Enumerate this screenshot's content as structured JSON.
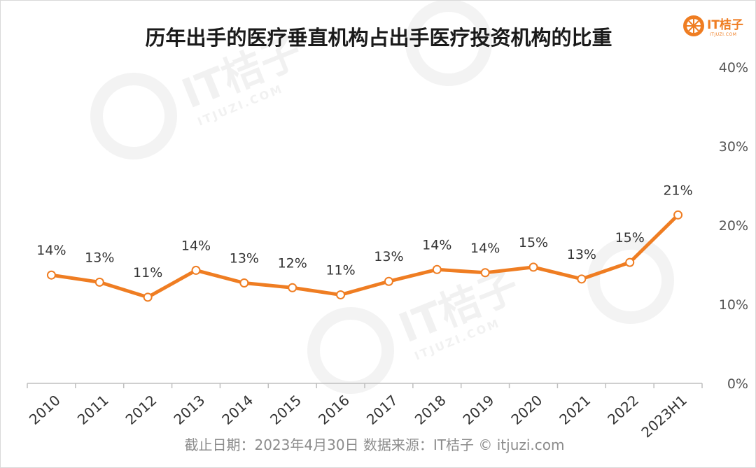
{
  "brand": {
    "name": "IT桔子",
    "domain": "ITJUZI.COM",
    "color": "#ef7d22"
  },
  "footer": {
    "text": "截止日期：2023年4月30日    数据来源：IT桔子 © itjuzi.com"
  },
  "chart_data": {
    "type": "line",
    "title": "历年出手的医疗垂直机构占出手医疗投资机构的比重",
    "categories": [
      "2010",
      "2011",
      "2012",
      "2013",
      "2014",
      "2015",
      "2016",
      "2017",
      "2018",
      "2019",
      "2020",
      "2021",
      "2022",
      "2023H1"
    ],
    "series": [
      {
        "values": [
          13.7,
          12.8,
          10.9,
          14.3,
          12.7,
          12.1,
          11.2,
          12.9,
          14.4,
          14.0,
          14.7,
          13.2,
          15.3,
          21.3
        ],
        "labels": [
          "14%",
          "13%",
          "11%",
          "14%",
          "13%",
          "12%",
          "11%",
          "13%",
          "14%",
          "14%",
          "15%",
          "13%",
          "15%",
          "21%"
        ],
        "color": "#ef7d22"
      }
    ],
    "yticks": [
      "0%",
      "10%",
      "20%",
      "30%",
      "40%"
    ],
    "ylim": [
      0,
      40
    ],
    "y_axis_side": "right",
    "grid": false,
    "legend": "none"
  }
}
